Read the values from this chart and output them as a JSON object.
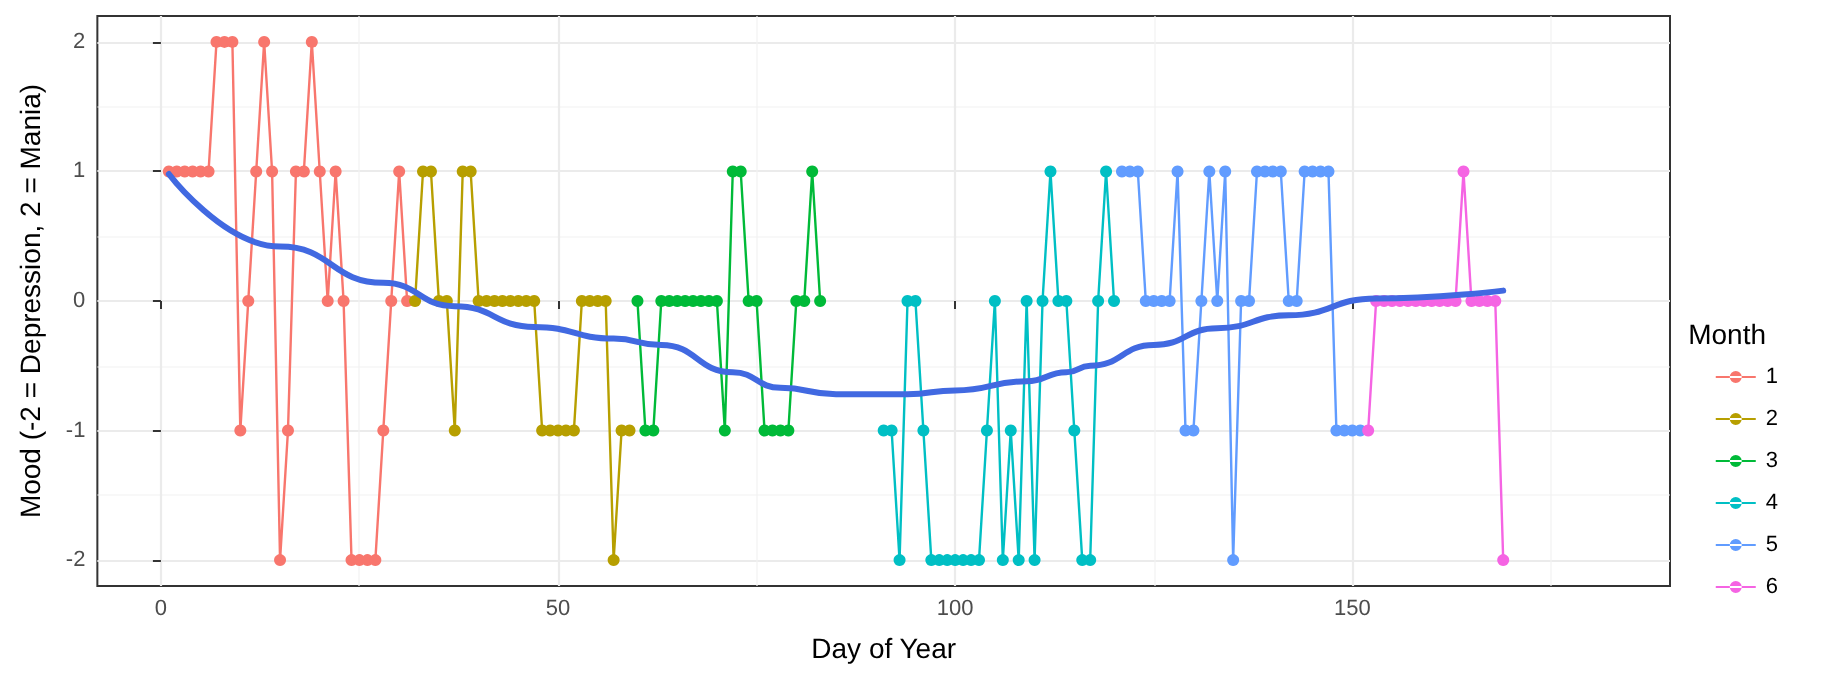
{
  "chart_data": {
    "type": "line",
    "xlabel": "Day of Year",
    "ylabel": "Mood (-2 = Depression, 2 = Mania)",
    "legend_title": "Month",
    "legend": "right",
    "grid": true,
    "marker": "circle",
    "line_style": "solid",
    "xlim": [
      -8,
      190
    ],
    "xticks": [
      0,
      {
        "value": 25,
        "label": null
      },
      50,
      {
        "value": 75,
        "label": null
      },
      100,
      {
        "value": 125,
        "label": null
      },
      150,
      {
        "value": 175,
        "label": null
      }
    ],
    "ylim": [
      -2.2,
      2.2
    ],
    "yticks": [
      -2,
      {
        "value": -1.5,
        "label": null
      },
      -1,
      {
        "value": -0.5,
        "label": null
      },
      0,
      {
        "value": 0.5,
        "label": null
      },
      1,
      {
        "value": 1.5,
        "label": null
      },
      2
    ],
    "series": [
      {
        "name": "1",
        "color": "#f8766d",
        "x": [
          1,
          2,
          3,
          4,
          5,
          6,
          7,
          8,
          9,
          10,
          11,
          12,
          13,
          14,
          15,
          16,
          17,
          18,
          19,
          20,
          21,
          22,
          23,
          24,
          25,
          26,
          27,
          28,
          29,
          30,
          31
        ],
        "values": [
          1,
          1,
          1,
          1,
          1,
          1,
          2,
          2,
          2,
          -1,
          0,
          1,
          2,
          1,
          -2,
          -1,
          1,
          1,
          2,
          1,
          0,
          1,
          0,
          -2,
          -2,
          -2,
          -2,
          -1,
          0,
          1,
          0
        ]
      },
      {
        "name": "2",
        "color": "#b79f00",
        "x": [
          32,
          33,
          34,
          35,
          36,
          37,
          38,
          39,
          40,
          41,
          42,
          43,
          44,
          45,
          46,
          47,
          48,
          49,
          50,
          51,
          52,
          53,
          54,
          55,
          56,
          57,
          58,
          59
        ],
        "values": [
          0,
          1,
          1,
          0,
          0,
          -1,
          1,
          1,
          0,
          0,
          0,
          0,
          0,
          0,
          0,
          0,
          -1,
          -1,
          -1,
          -1,
          -1,
          0,
          0,
          0,
          0,
          -2,
          -1,
          -1
        ]
      },
      {
        "name": "3",
        "color": "#00ba38",
        "x": [
          60,
          61,
          62,
          63,
          64,
          65,
          66,
          67,
          68,
          69,
          70,
          71,
          72,
          73,
          74,
          75,
          76,
          77,
          78,
          79,
          80,
          81,
          82,
          83
        ],
        "values": [
          0,
          -1,
          -1,
          0,
          0,
          0,
          0,
          0,
          0,
          0,
          0,
          -1,
          1,
          1,
          0,
          0,
          -1,
          -1,
          -1,
          -1,
          0,
          0,
          1,
          0
        ]
      },
      {
        "name": "4",
        "color": "#00bfc4",
        "x": [
          91,
          92,
          93,
          94,
          95,
          96,
          97,
          98,
          99,
          100,
          101,
          102,
          103,
          104,
          105,
          106,
          107,
          108,
          109,
          110,
          111,
          112,
          113,
          114,
          115,
          116,
          117,
          118,
          119,
          120
        ],
        "values": [
          -1,
          -1,
          -2,
          0,
          0,
          -1,
          -2,
          -2,
          -2,
          -2,
          -2,
          -2,
          -2,
          -1,
          0,
          -2,
          -1,
          -2,
          0,
          -2,
          0,
          1,
          0,
          0,
          -1,
          -2,
          -2,
          0,
          1,
          0
        ]
      },
      {
        "name": "5",
        "color": "#619cff",
        "x": [
          121,
          122,
          123,
          124,
          125,
          126,
          127,
          128,
          129,
          130,
          131,
          132,
          133,
          134,
          135,
          136,
          137,
          138,
          139,
          140,
          141,
          142,
          143,
          144,
          145,
          146,
          147,
          148,
          149,
          150,
          151
        ],
        "values": [
          1,
          1,
          1,
          0,
          0,
          0,
          0,
          1,
          -1,
          -1,
          0,
          1,
          0,
          1,
          -2,
          0,
          0,
          1,
          1,
          1,
          1,
          0,
          0,
          1,
          1,
          1,
          1,
          -1,
          -1,
          -1,
          -1
        ]
      },
      {
        "name": "6",
        "color": "#f564e3",
        "x": [
          152,
          153,
          154,
          155,
          156,
          157,
          158,
          159,
          160,
          161,
          162,
          163,
          164,
          165,
          166,
          167,
          168,
          169
        ],
        "values": [
          -1,
          0,
          0,
          0,
          0,
          0,
          0,
          0,
          0,
          0,
          0,
          0,
          1,
          0,
          0,
          0,
          0,
          -2
        ]
      },
      {
        "type": "line",
        "marker": "none",
        "color": "#4169e1",
        "x": [
          1,
          15,
          28,
          37,
          47,
          57,
          63,
          72,
          78,
          85,
          94,
          100,
          109,
          114,
          117,
          125,
          133,
          142,
          153,
          169
        ],
        "values": [
          0.98,
          0.42,
          0.14,
          -0.04,
          -0.2,
          -0.29,
          -0.34,
          -0.55,
          -0.67,
          -0.72,
          -0.72,
          -0.69,
          -0.62,
          -0.55,
          -0.5,
          -0.34,
          -0.21,
          -0.11,
          0.02,
          0.08
        ]
      }
    ]
  }
}
